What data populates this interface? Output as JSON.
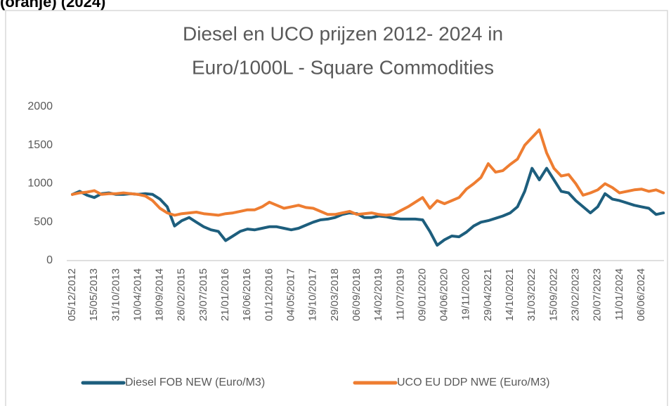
{
  "caption": "(oranje) (2024)",
  "chart_data": {
    "type": "line",
    "title": [
      "Diesel en UCO prijzen 2012- 2024 in",
      "Euro/1000L - Square Commodities"
    ],
    "categories": [
      "05/12/2012",
      null,
      null,
      "15/05/2013",
      null,
      null,
      "31/10/2013",
      null,
      null,
      "10/04/2014",
      null,
      null,
      "18/09/2014",
      null,
      null,
      "26/02/2015",
      null,
      null,
      "23/07/2015",
      null,
      null,
      "21/01/2016",
      null,
      null,
      "16/06/2016",
      null,
      null,
      "01/12/2016",
      null,
      null,
      "04/05/2017",
      null,
      null,
      "19/10/2017",
      null,
      null,
      "29/03/2018",
      null,
      null,
      "06/09/2018",
      null,
      null,
      "14/02/2019",
      null,
      null,
      "11/07/2019",
      null,
      null,
      "09/01/2020",
      null,
      null,
      "04/06/2020",
      null,
      null,
      "19/11/2020",
      null,
      null,
      "29/04/2021",
      null,
      null,
      "14/10/2021",
      null,
      null,
      "31/03/2022",
      null,
      null,
      "15/09/2022",
      null,
      null,
      "23/02/2023",
      null,
      null,
      "20/07/2023",
      null,
      null,
      "11/01/2024",
      null,
      null,
      "06/06/2024",
      null,
      null,
      null
    ],
    "series": [
      {
        "name": "Diesel FOB NEW (Euro/M3)",
        "color": "#1d5e7d",
        "values": [
          860,
          900,
          850,
          820,
          870,
          880,
          860,
          860,
          870,
          860,
          870,
          860,
          800,
          700,
          450,
          520,
          560,
          500,
          440,
          400,
          380,
          260,
          320,
          380,
          410,
          400,
          420,
          440,
          440,
          420,
          400,
          420,
          460,
          500,
          530,
          540,
          560,
          600,
          620,
          610,
          560,
          560,
          580,
          570,
          550,
          540,
          540,
          540,
          530,
          380,
          200,
          270,
          320,
          310,
          370,
          450,
          500,
          520,
          550,
          580,
          620,
          700,
          900,
          1200,
          1050,
          1200,
          1050,
          900,
          880,
          780,
          700,
          620,
          700,
          870,
          800,
          780,
          750,
          720,
          700,
          680,
          600,
          620
        ]
      },
      {
        "name": "UCO EU DDP NWE (Euro/M3)",
        "color": "#ee7d31",
        "values": [
          860,
          880,
          890,
          910,
          860,
          870,
          870,
          880,
          870,
          860,
          840,
          780,
          680,
          620,
          590,
          610,
          620,
          630,
          610,
          600,
          590,
          610,
          620,
          640,
          660,
          660,
          700,
          760,
          720,
          680,
          700,
          720,
          690,
          680,
          640,
          600,
          600,
          620,
          640,
          600,
          610,
          620,
          600,
          590,
          600,
          650,
          700,
          760,
          820,
          680,
          780,
          740,
          780,
          820,
          930,
          1000,
          1080,
          1260,
          1150,
          1170,
          1250,
          1320,
          1500,
          1600,
          1700,
          1400,
          1200,
          1100,
          1120,
          1000,
          850,
          880,
          920,
          1000,
          950,
          880,
          900,
          920,
          930,
          900,
          920,
          880
        ]
      }
    ],
    "ylim": [
      0,
      2000
    ],
    "yticks": [
      0,
      500,
      1000,
      1500,
      2000
    ],
    "grid": false,
    "legend": "bottom"
  }
}
